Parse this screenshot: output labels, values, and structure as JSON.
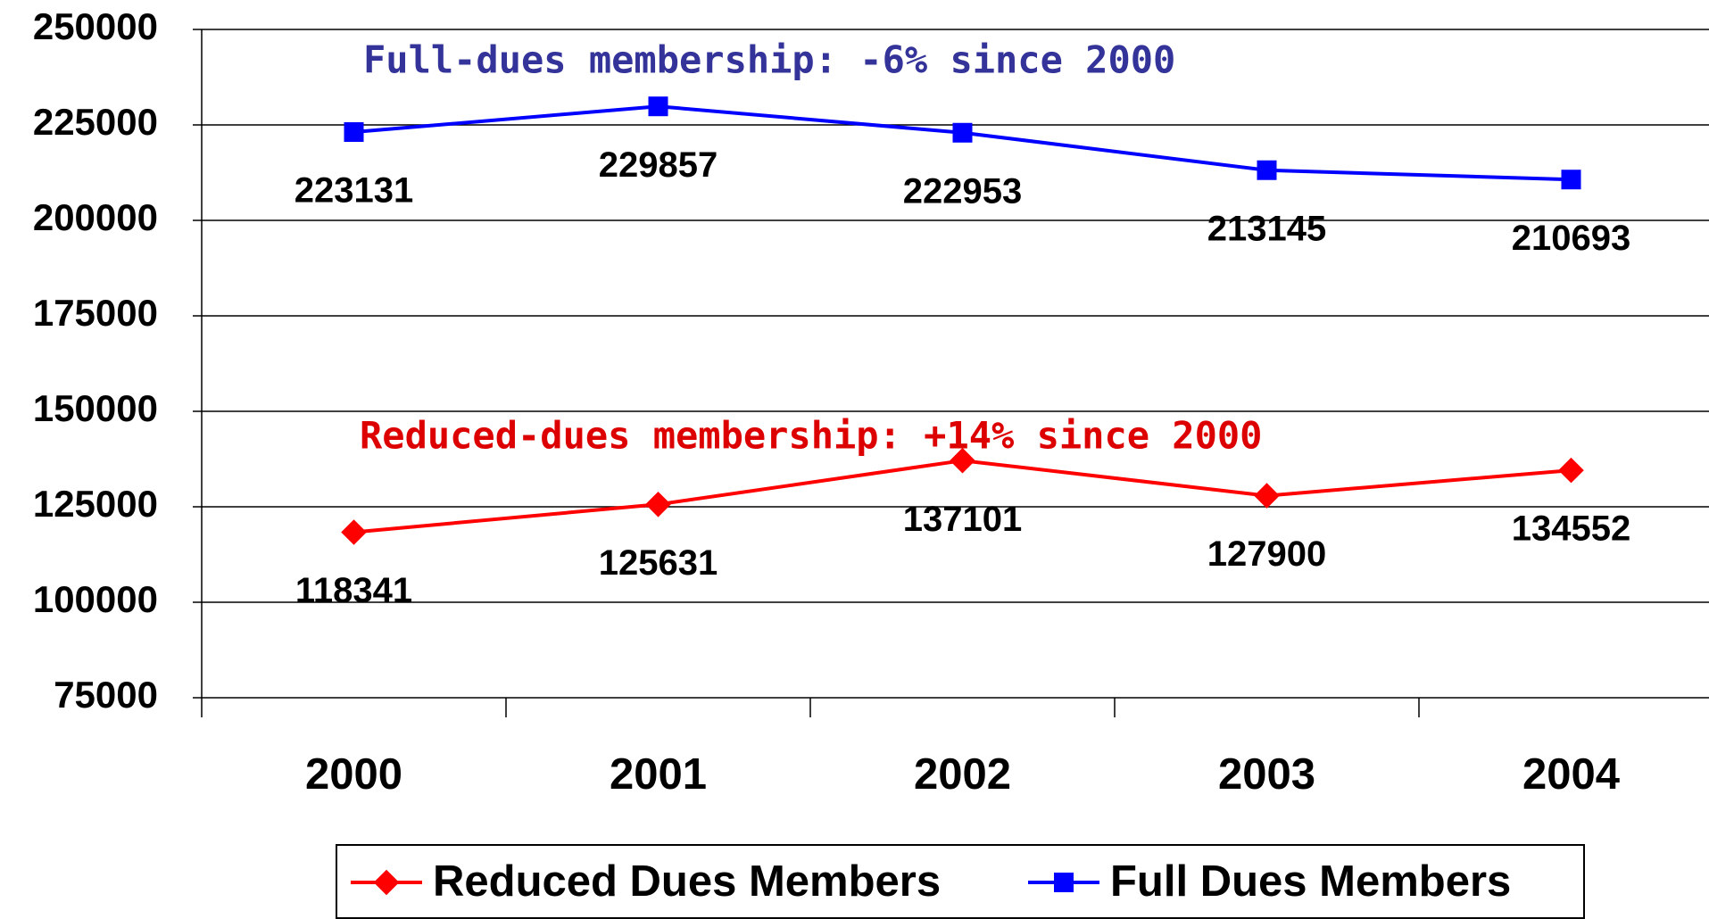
{
  "chart_data": {
    "type": "line",
    "categories": [
      "2000",
      "2001",
      "2002",
      "2003",
      "2004"
    ],
    "series": [
      {
        "name": "Reduced Dues Members",
        "color": "#ff0000",
        "marker": "diamond",
        "values": [
          118341,
          125631,
          137101,
          127900,
          134552
        ]
      },
      {
        "name": "Full Dues Members",
        "color": "#0000ff",
        "marker": "square",
        "values": [
          223131,
          229857,
          222953,
          213145,
          210693
        ]
      }
    ],
    "annotations": [
      {
        "text": "Full-dues membership: -6% since 2000",
        "color": "#333399"
      },
      {
        "text": "Reduced-dues membership: +14% since 2000",
        "color": "#dd0000"
      }
    ],
    "ylim": [
      75000,
      250000
    ],
    "yticks": [
      75000,
      100000,
      125000,
      150000,
      175000,
      200000,
      225000,
      250000
    ],
    "grid": true,
    "legend": "bottom"
  }
}
